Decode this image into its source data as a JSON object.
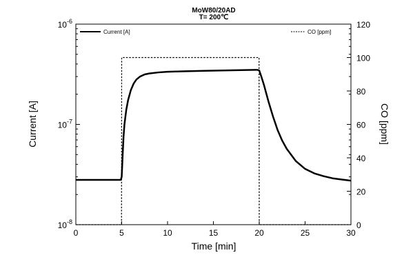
{
  "chart_data": {
    "type": "line",
    "title": "MoW80/20AD",
    "subtitle": "T= 200℃",
    "xlabel": "Time [min]",
    "ylabel_left": "Current [A]",
    "ylabel_right": "CO [ppm]",
    "xlim": [
      0,
      30
    ],
    "xticks": [
      0,
      5,
      10,
      15,
      20,
      25,
      30
    ],
    "ylim_left": [
      1e-08,
      1e-06
    ],
    "yscale_left": "log",
    "yticks_left": [
      {
        "value": 1e-08,
        "base": "10",
        "exp": "-8"
      },
      {
        "value": 1e-07,
        "base": "10",
        "exp": "-7"
      },
      {
        "value": 1e-06,
        "base": "10",
        "exp": "-6"
      }
    ],
    "ylim_right": [
      0,
      120
    ],
    "yticks_right": [
      0,
      20,
      40,
      60,
      80,
      100,
      120
    ],
    "grid": false,
    "legend": [
      {
        "label": "Current [A]",
        "style": "solid",
        "position": "top-left"
      },
      {
        "label": "CO [ppm]",
        "style": "dashed",
        "position": "top-right"
      }
    ],
    "series": [
      {
        "name": "Current [A]",
        "axis": "left",
        "style": "solid",
        "color": "#000000",
        "x": [
          0,
          4.9,
          5.0,
          5.1,
          5.2,
          5.3,
          5.5,
          5.7,
          6.0,
          6.3,
          6.6,
          7.0,
          7.5,
          8.0,
          9.0,
          10.0,
          11.0,
          12.0,
          14.0,
          16.0,
          18.0,
          19.5,
          19.8,
          20.0,
          20.2,
          20.5,
          21.0,
          21.5,
          22.0,
          22.5,
          23.0,
          24.0,
          25.0,
          26.0,
          27.0,
          28.0,
          29.0,
          30.0
        ],
        "values": [
          2.8e-08,
          2.8e-08,
          3e-08,
          4.8e-08,
          7.5e-08,
          1e-07,
          1.4e-07,
          1.75e-07,
          2.2e-07,
          2.55e-07,
          2.8e-07,
          3e-07,
          3.15e-07,
          3.22e-07,
          3.3e-07,
          3.35e-07,
          3.37e-07,
          3.39e-07,
          3.42e-07,
          3.45e-07,
          3.48e-07,
          3.5e-07,
          3.5e-07,
          3.45e-07,
          3.05e-07,
          2.5e-07,
          1.7e-07,
          1.2e-07,
          8.8e-08,
          6.9e-08,
          5.7e-08,
          4.3e-08,
          3.6e-08,
          3.25e-08,
          3.05e-08,
          2.9e-08,
          2.82e-08,
          2.75e-08
        ]
      },
      {
        "name": "CO [ppm]",
        "axis": "right",
        "style": "dashed",
        "color": "#000000",
        "x": [
          0,
          4.98,
          5.0,
          19.98,
          20.0,
          30
        ],
        "values": [
          0,
          0,
          100,
          100,
          0,
          0
        ]
      }
    ]
  }
}
